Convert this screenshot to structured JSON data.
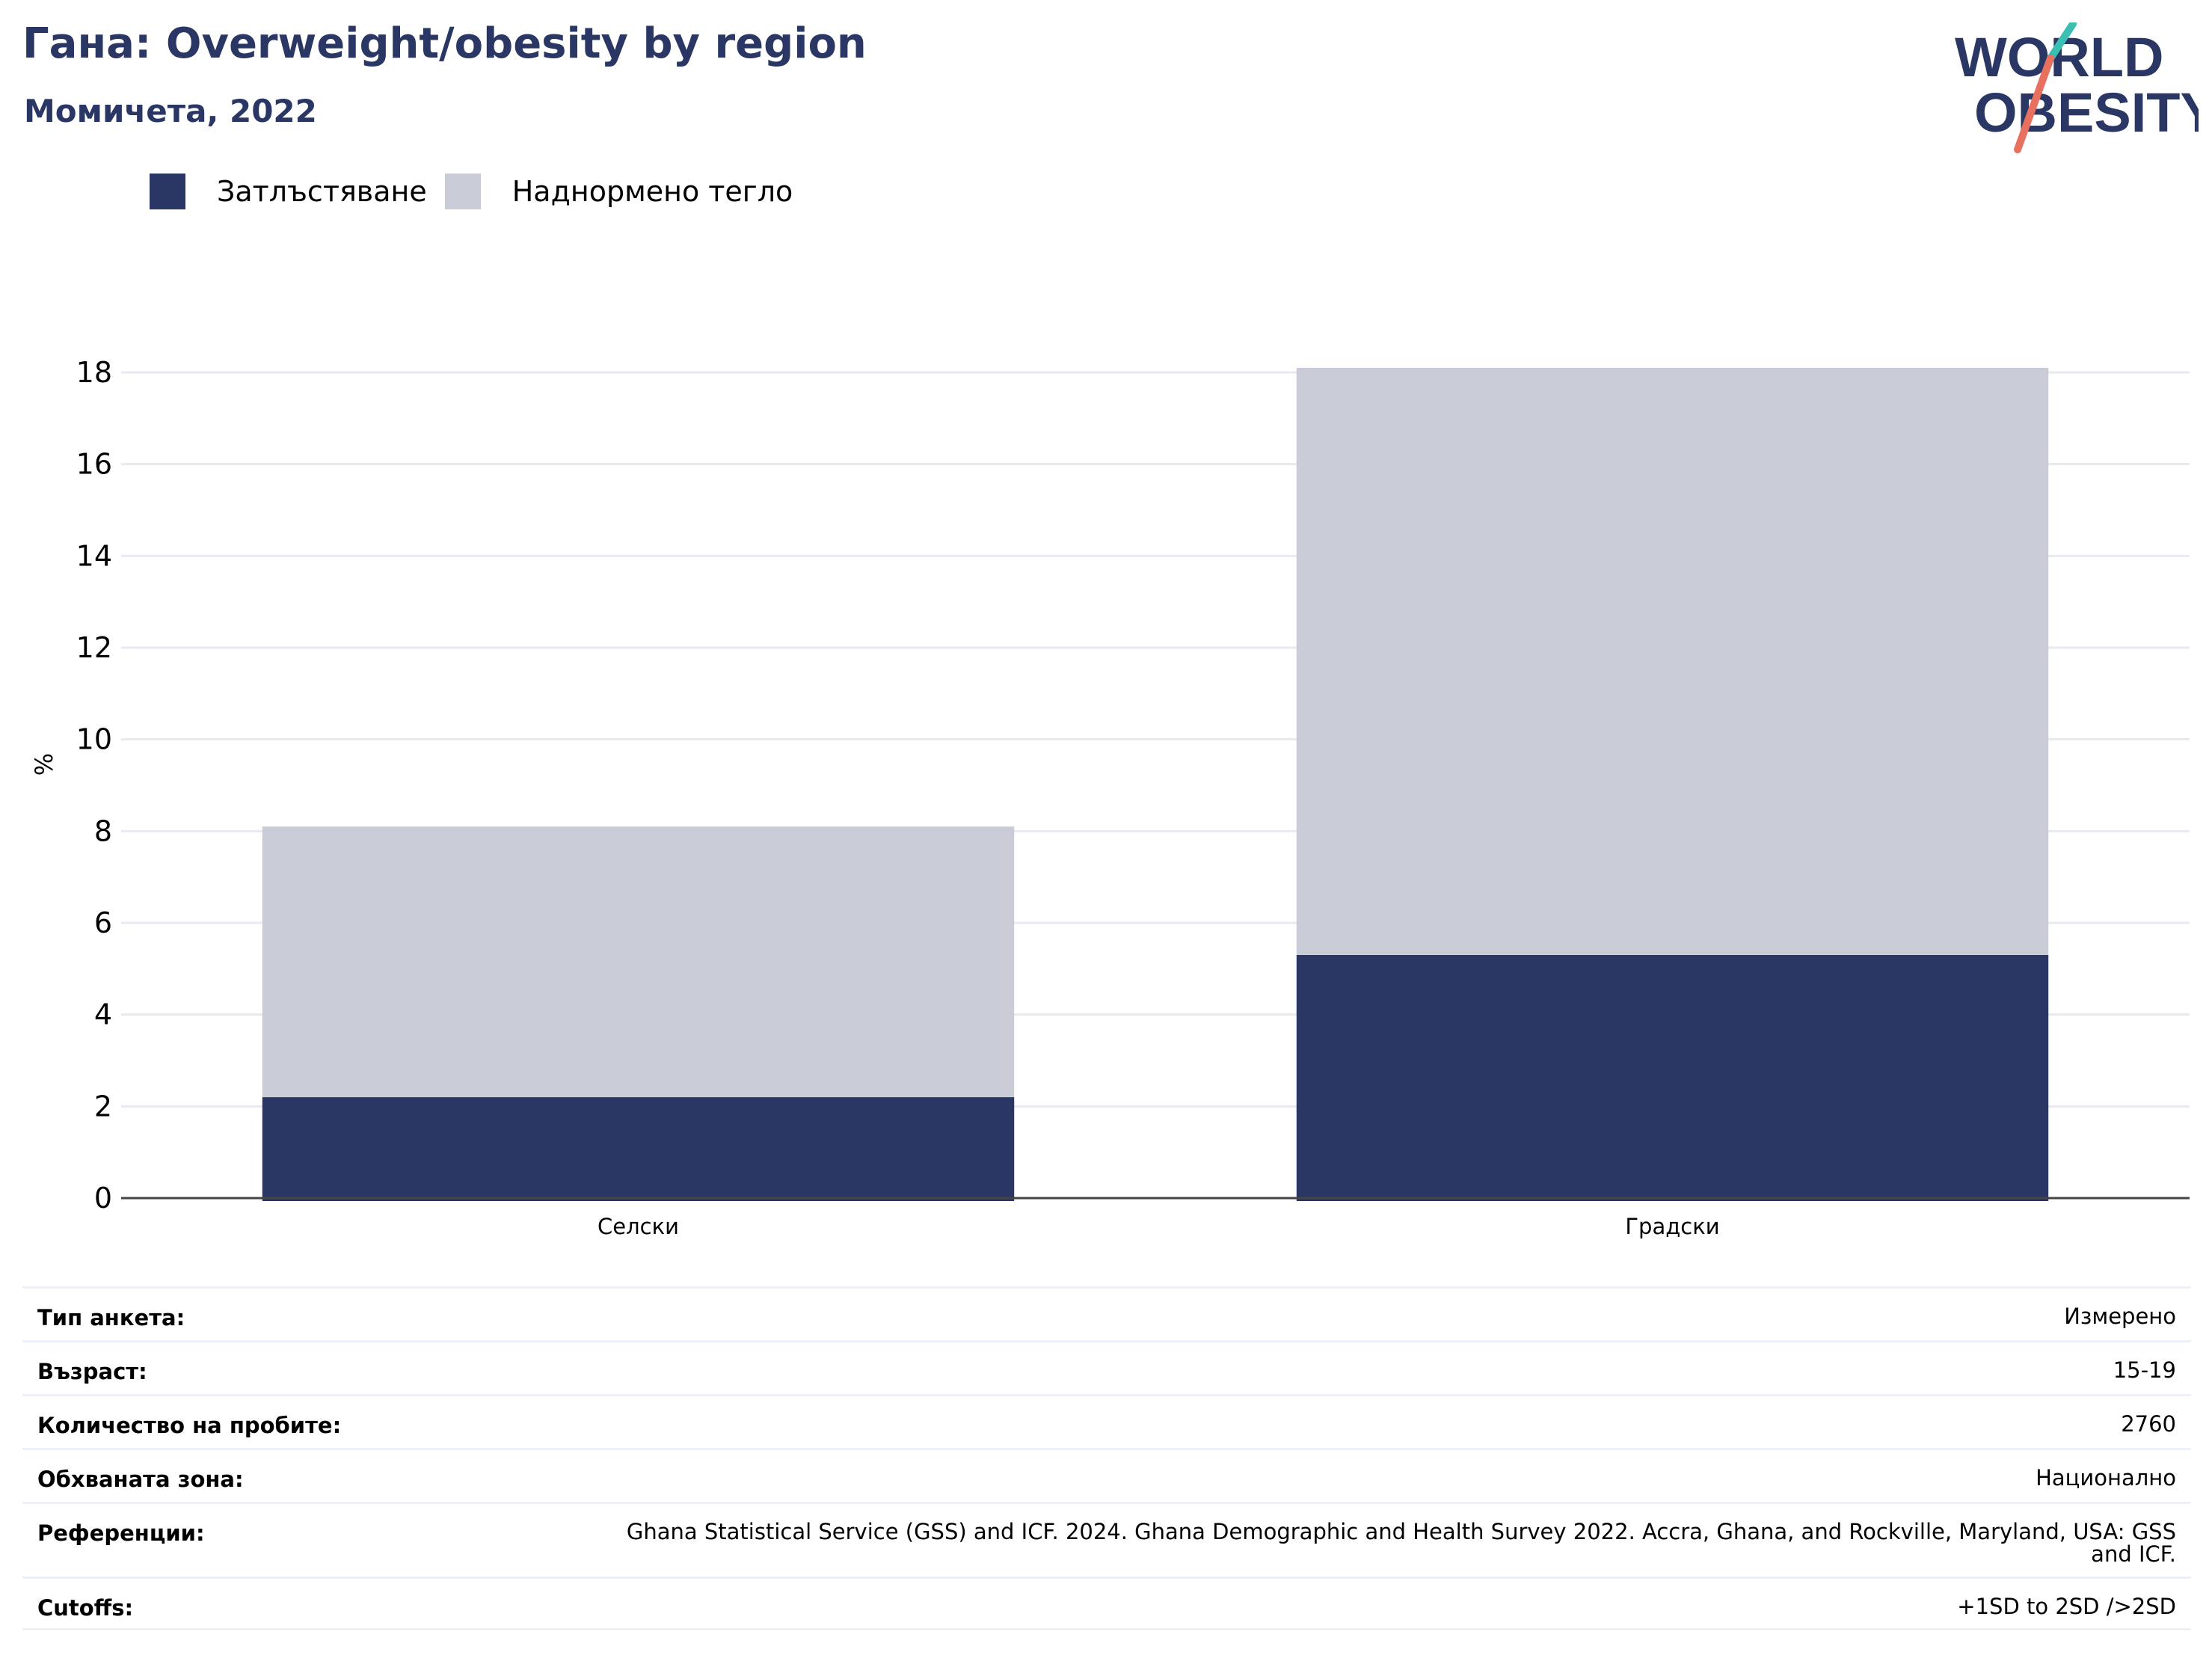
{
  "header": {
    "title": "Гана: Overweight/obesity by region",
    "subtitle": "Момичета, 2022"
  },
  "logo": {
    "line1": "WORLD",
    "line2": "OBESITY",
    "colors": {
      "navy": "#2a3764",
      "teal": "#3bbfb2",
      "coral": "#e8705f"
    }
  },
  "legend": [
    {
      "label": "Затлъстяване",
      "color": "#2a3764"
    },
    {
      "label": "Наднормено тегло",
      "color": "#c9cbd7"
    }
  ],
  "chart_data": {
    "type": "bar",
    "stacked": true,
    "categories": [
      "Селски",
      "Градски"
    ],
    "series": [
      {
        "name": "Затлъстяване",
        "color": "#2a3764",
        "values": [
          2.2,
          5.3
        ]
      },
      {
        "name": "Наднормено тегло",
        "color": "#c9cbd7",
        "values": [
          5.9,
          12.8
        ]
      }
    ],
    "ylabel": "%",
    "xlabel": "",
    "ylim": [
      0,
      18
    ],
    "yticks": [
      0,
      2,
      4,
      6,
      8,
      10,
      12,
      14,
      16,
      18
    ],
    "grid": true,
    "legend_position": "top-left"
  },
  "meta": [
    {
      "key": "Тип анкета:",
      "value": "Измерено"
    },
    {
      "key": "Възраст:",
      "value": "15-19"
    },
    {
      "key": "Количество на пробите:",
      "value": "2760"
    },
    {
      "key": "Обхваната зона:",
      "value": "Национално"
    },
    {
      "key": "Референции:",
      "value": "Ghana Statistical Service (GSS) and ICF. 2024. Ghana Demographic and Health Survey 2022. Accra, Ghana, and Rockville, Maryland, USA: GSS and ICF."
    },
    {
      "key": "Cutoffs:",
      "value": "+1SD to 2SD />2SD"
    }
  ]
}
